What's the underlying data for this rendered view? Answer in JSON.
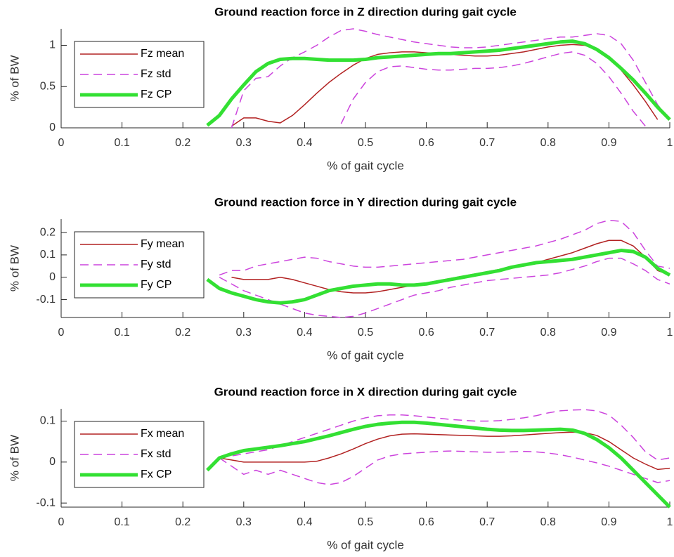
{
  "chart_data": [
    {
      "type": "line",
      "title": "Ground reaction force in Z direction during gait cycle",
      "xlabel": "% of gait cycle",
      "ylabel": "% of BW",
      "xlim": [
        0,
        1
      ],
      "ylim": [
        0,
        1.2
      ],
      "xticks": [
        0,
        0.1,
        0.2,
        0.3,
        0.4,
        0.5,
        0.6,
        0.7,
        0.8,
        0.9,
        1
      ],
      "yticks": [
        0,
        0.5,
        1
      ],
      "legend": "northwest",
      "x": [
        0.24,
        0.26,
        0.28,
        0.3,
        0.32,
        0.34,
        0.36,
        0.38,
        0.4,
        0.42,
        0.44,
        0.46,
        0.48,
        0.5,
        0.52,
        0.54,
        0.56,
        0.58,
        0.6,
        0.62,
        0.64,
        0.66,
        0.68,
        0.7,
        0.72,
        0.74,
        0.76,
        0.78,
        0.8,
        0.82,
        0.84,
        0.86,
        0.88,
        0.9,
        0.92,
        0.94,
        0.96,
        0.98,
        1.0
      ],
      "series": [
        {
          "name": "Fz mean",
          "color": "#b22222",
          "line_width": 1.5,
          "dash": false,
          "values": [
            null,
            null,
            0.02,
            0.12,
            0.12,
            0.08,
            0.06,
            0.15,
            0.28,
            0.42,
            0.55,
            0.66,
            0.76,
            0.84,
            0.89,
            0.91,
            0.92,
            0.92,
            0.91,
            0.9,
            0.89,
            0.88,
            0.87,
            0.87,
            0.88,
            0.9,
            0.92,
            0.95,
            0.98,
            1.0,
            1.01,
            1.0,
            0.95,
            0.85,
            0.7,
            0.52,
            0.32,
            0.1,
            null
          ]
        },
        {
          "name": "Fz std",
          "color": "#cc44dd",
          "line_width": 1.5,
          "dash": true,
          "upper": [
            null,
            null,
            0,
            0.45,
            0.6,
            0.62,
            0.75,
            0.85,
            0.92,
            1.0,
            1.1,
            1.18,
            1.2,
            1.17,
            1.13,
            1.1,
            1.07,
            1.04,
            1.02,
            1.0,
            0.98,
            0.97,
            0.97,
            0.98,
            1.0,
            1.02,
            1.04,
            1.06,
            1.08,
            1.1,
            1.1,
            1.12,
            1.14,
            1.12,
            1.02,
            0.82,
            0.55,
            0.28,
            0.1
          ],
          "lower": [
            null,
            null,
            null,
            null,
            null,
            null,
            null,
            null,
            null,
            null,
            null,
            0.05,
            0.35,
            0.55,
            0.68,
            0.74,
            0.75,
            0.73,
            0.71,
            0.7,
            0.7,
            0.71,
            0.72,
            0.72,
            0.73,
            0.75,
            0.78,
            0.82,
            0.86,
            0.9,
            0.92,
            0.88,
            0.78,
            0.62,
            0.42,
            0.2,
            0.02,
            null,
            null
          ]
        },
        {
          "name": "Fz CP",
          "color": "#33e033",
          "line_width": 5,
          "dash": false,
          "values": [
            0.03,
            0.15,
            0.35,
            0.52,
            0.68,
            0.78,
            0.83,
            0.84,
            0.84,
            0.83,
            0.82,
            0.82,
            0.82,
            0.83,
            0.85,
            0.86,
            0.87,
            0.88,
            0.89,
            0.9,
            0.9,
            0.91,
            0.92,
            0.93,
            0.94,
            0.96,
            0.98,
            1.0,
            1.02,
            1.04,
            1.05,
            1.02,
            0.95,
            0.85,
            0.72,
            0.58,
            0.42,
            0.25,
            0.1
          ]
        }
      ]
    },
    {
      "type": "line",
      "title": "Ground reaction force in Y direction during gait cycle",
      "xlabel": "% of gait cycle",
      "ylabel": "% of BW",
      "xlim": [
        0,
        1
      ],
      "ylim": [
        -0.18,
        0.26
      ],
      "xticks": [
        0,
        0.1,
        0.2,
        0.3,
        0.4,
        0.5,
        0.6,
        0.7,
        0.8,
        0.9,
        1
      ],
      "yticks": [
        -0.1,
        0,
        0.1,
        0.2
      ],
      "legend": "northwest",
      "x": [
        0.24,
        0.26,
        0.28,
        0.3,
        0.32,
        0.34,
        0.36,
        0.38,
        0.4,
        0.42,
        0.44,
        0.46,
        0.48,
        0.5,
        0.52,
        0.54,
        0.56,
        0.58,
        0.6,
        0.62,
        0.64,
        0.66,
        0.68,
        0.7,
        0.72,
        0.74,
        0.76,
        0.78,
        0.8,
        0.82,
        0.84,
        0.86,
        0.88,
        0.9,
        0.92,
        0.94,
        0.96,
        0.98,
        1.0
      ],
      "series": [
        {
          "name": "Fy mean",
          "color": "#b22222",
          "line_width": 1.5,
          "dash": false,
          "values": [
            null,
            null,
            0,
            -0.01,
            -0.01,
            -0.01,
            0,
            -0.01,
            -0.025,
            -0.04,
            -0.055,
            -0.065,
            -0.07,
            -0.07,
            -0.065,
            -0.055,
            -0.045,
            -0.035,
            -0.025,
            -0.015,
            -0.005,
            0.005,
            0.015,
            0.025,
            0.035,
            0.045,
            0.055,
            0.065,
            0.08,
            0.095,
            0.11,
            0.13,
            0.15,
            0.165,
            0.165,
            0.14,
            0.09,
            0.03,
            0.01
          ]
        },
        {
          "name": "Fy std",
          "color": "#cc44dd",
          "line_width": 1.5,
          "dash": true,
          "upper": [
            null,
            0.01,
            0.03,
            0.03,
            0.05,
            0.06,
            0.07,
            0.08,
            0.09,
            0.085,
            0.07,
            0.06,
            0.05,
            0.045,
            0.045,
            0.05,
            0.055,
            0.06,
            0.065,
            0.07,
            0.075,
            0.08,
            0.09,
            0.1,
            0.11,
            0.12,
            0.13,
            0.14,
            0.155,
            0.17,
            0.19,
            0.21,
            0.24,
            0.255,
            0.25,
            0.2,
            0.12,
            0.05,
            0.04
          ],
          "lower": [
            null,
            0,
            -0.03,
            -0.06,
            -0.08,
            -0.1,
            -0.12,
            -0.14,
            -0.16,
            -0.17,
            -0.175,
            -0.18,
            -0.175,
            -0.16,
            -0.14,
            -0.12,
            -0.1,
            -0.08,
            -0.07,
            -0.06,
            -0.045,
            -0.035,
            -0.025,
            -0.015,
            -0.01,
            -0.005,
            0,
            0.005,
            0.01,
            0.02,
            0.035,
            0.05,
            0.07,
            0.085,
            0.085,
            0.06,
            0.03,
            -0.01,
            -0.03
          ]
        },
        {
          "name": "Fy CP",
          "color": "#33e033",
          "line_width": 5,
          "dash": false,
          "values": [
            -0.01,
            -0.05,
            -0.07,
            -0.085,
            -0.1,
            -0.11,
            -0.115,
            -0.11,
            -0.1,
            -0.08,
            -0.06,
            -0.05,
            -0.04,
            -0.035,
            -0.03,
            -0.03,
            -0.035,
            -0.035,
            -0.03,
            -0.02,
            -0.01,
            0,
            0.01,
            0.02,
            0.03,
            0.045,
            0.055,
            0.065,
            0.07,
            0.075,
            0.08,
            0.09,
            0.1,
            0.11,
            0.12,
            0.115,
            0.09,
            0.04,
            0.01
          ]
        }
      ]
    },
    {
      "type": "line",
      "title": "Ground reaction force in X direction during gait cycle",
      "xlabel": "% of gait cycle",
      "ylabel": "% of BW",
      "xlim": [
        0,
        1
      ],
      "ylim": [
        -0.11,
        0.13
      ],
      "xticks": [
        0,
        0.1,
        0.2,
        0.3,
        0.4,
        0.5,
        0.6,
        0.7,
        0.8,
        0.9,
        1
      ],
      "yticks": [
        -0.1,
        0,
        0.1
      ],
      "legend": "northwest",
      "x": [
        0.24,
        0.26,
        0.28,
        0.3,
        0.32,
        0.34,
        0.36,
        0.38,
        0.4,
        0.42,
        0.44,
        0.46,
        0.48,
        0.5,
        0.52,
        0.54,
        0.56,
        0.58,
        0.6,
        0.62,
        0.64,
        0.66,
        0.68,
        0.7,
        0.72,
        0.74,
        0.76,
        0.78,
        0.8,
        0.82,
        0.84,
        0.86,
        0.88,
        0.9,
        0.92,
        0.94,
        0.96,
        0.98,
        1.0
      ],
      "series": [
        {
          "name": "Fx mean",
          "color": "#b22222",
          "line_width": 1.5,
          "dash": false,
          "values": [
            null,
            0.01,
            0.005,
            0,
            0,
            0,
            0,
            0,
            0,
            0.002,
            0.01,
            0.02,
            0.032,
            0.045,
            0.056,
            0.064,
            0.068,
            0.069,
            0.068,
            0.067,
            0.066,
            0.065,
            0.064,
            0.063,
            0.063,
            0.064,
            0.066,
            0.068,
            0.07,
            0.072,
            0.073,
            0.072,
            0.065,
            0.05,
            0.03,
            0.01,
            -0.005,
            -0.018,
            -0.015
          ]
        },
        {
          "name": "Fx std",
          "color": "#cc44dd",
          "line_width": 1.5,
          "dash": true,
          "upper": [
            null,
            0.01,
            0.015,
            0.02,
            0.025,
            0.03,
            0.04,
            0.05,
            0.06,
            0.07,
            0.08,
            0.09,
            0.1,
            0.108,
            0.113,
            0.115,
            0.115,
            0.113,
            0.11,
            0.107,
            0.104,
            0.102,
            0.1,
            0.1,
            0.101,
            0.104,
            0.108,
            0.113,
            0.12,
            0.125,
            0.127,
            0.128,
            0.125,
            0.115,
            0.09,
            0.06,
            0.025,
            0.005,
            0.01
          ],
          "lower": [
            null,
            0.01,
            -0.01,
            -0.03,
            -0.02,
            -0.03,
            -0.02,
            -0.03,
            -0.04,
            -0.05,
            -0.055,
            -0.05,
            -0.035,
            -0.015,
            0.005,
            0.015,
            0.02,
            0.022,
            0.024,
            0.026,
            0.027,
            0.026,
            0.025,
            0.024,
            0.024,
            0.025,
            0.026,
            0.025,
            0.022,
            0.018,
            0.012,
            0.005,
            -0.002,
            -0.01,
            -0.02,
            -0.03,
            -0.04,
            -0.05,
            -0.045
          ]
        },
        {
          "name": "Fx CP",
          "color": "#33e033",
          "line_width": 5,
          "dash": false,
          "values": [
            -0.02,
            0.01,
            0.02,
            0.028,
            0.032,
            0.036,
            0.04,
            0.045,
            0.05,
            0.057,
            0.064,
            0.072,
            0.08,
            0.087,
            0.092,
            0.095,
            0.097,
            0.097,
            0.095,
            0.092,
            0.089,
            0.086,
            0.083,
            0.08,
            0.078,
            0.077,
            0.077,
            0.078,
            0.079,
            0.08,
            0.078,
            0.07,
            0.055,
            0.035,
            0.01,
            -0.02,
            -0.05,
            -0.08,
            -0.11
          ]
        }
      ]
    }
  ]
}
